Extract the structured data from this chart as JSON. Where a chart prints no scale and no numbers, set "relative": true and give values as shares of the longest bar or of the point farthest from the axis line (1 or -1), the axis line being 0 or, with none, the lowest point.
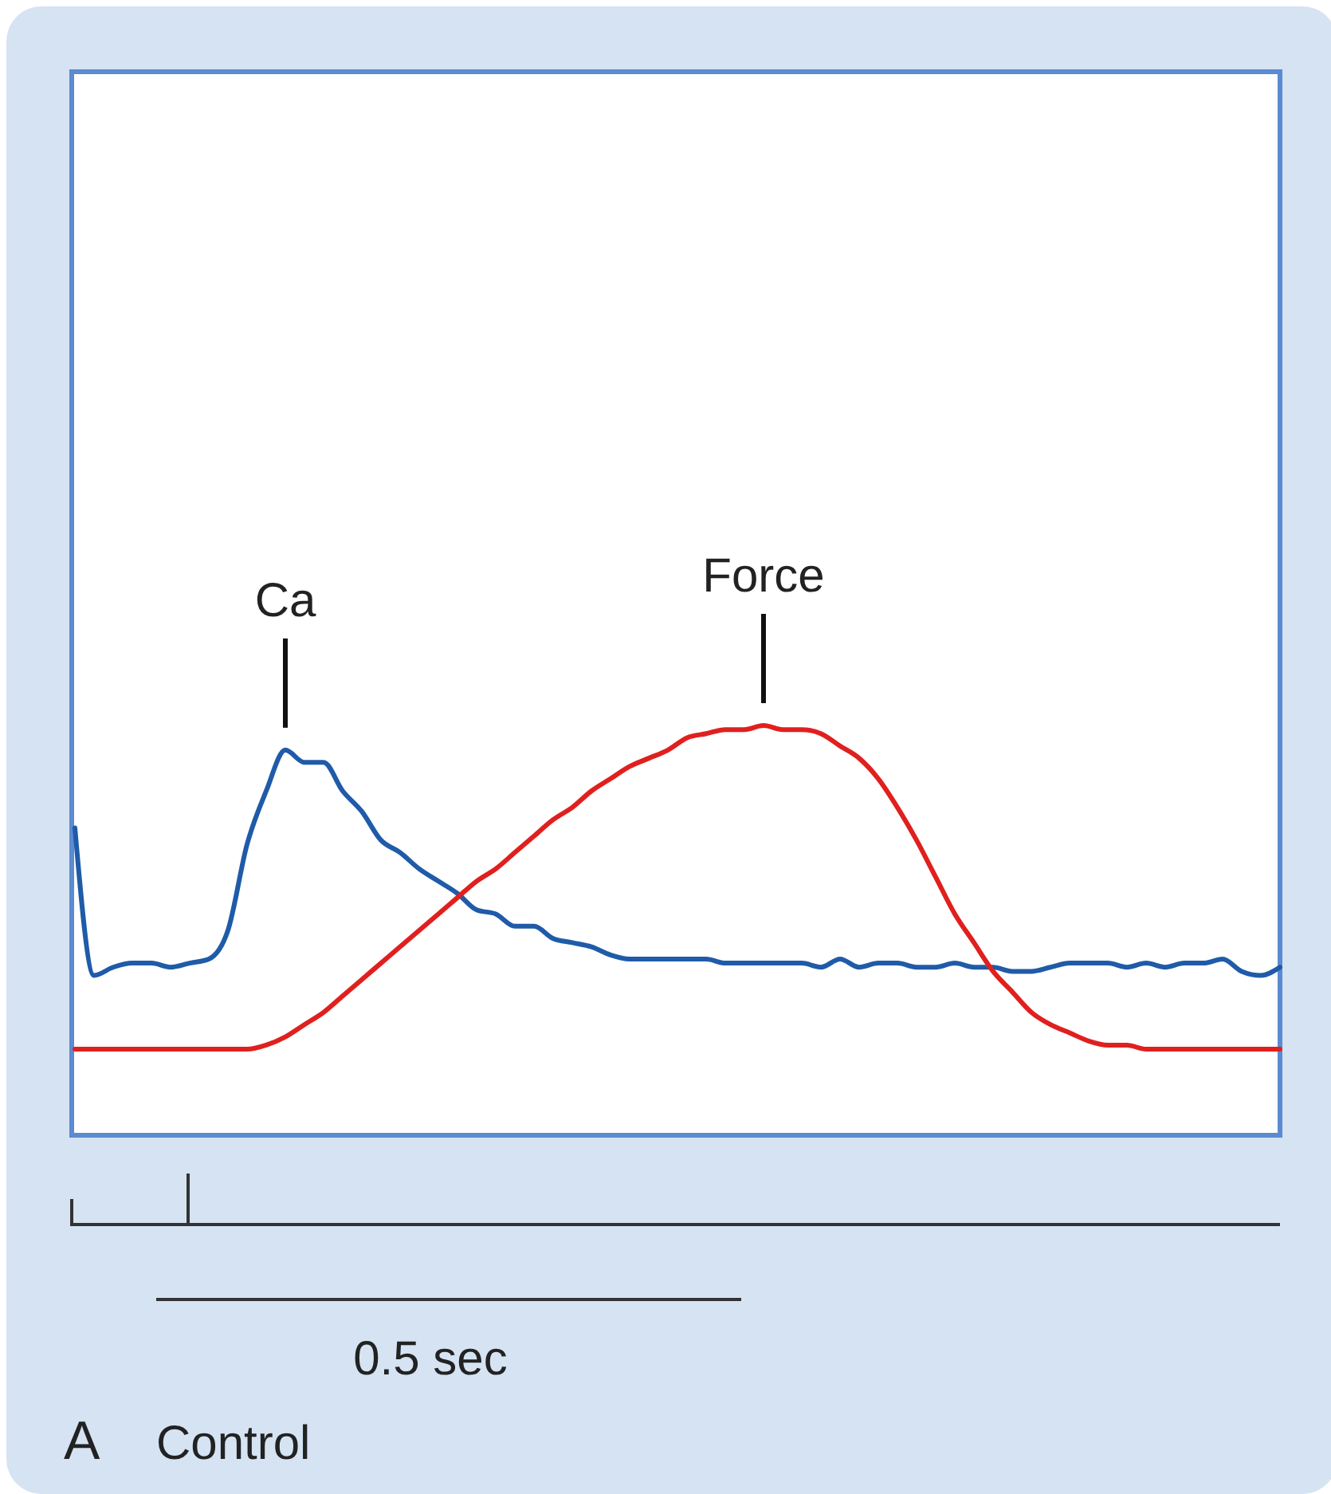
{
  "chart_data": {
    "type": "line",
    "relative": true,
    "tick_labels": false,
    "categories": [
      null,
      null,
      null,
      null,
      null,
      null,
      null,
      null,
      null,
      null,
      null,
      null,
      null,
      null,
      null,
      null,
      null,
      null,
      null,
      null,
      null,
      null,
      null,
      null,
      null,
      null,
      null,
      null,
      null,
      null,
      null,
      null,
      null,
      null,
      null,
      null,
      null,
      null,
      null,
      null,
      null,
      null,
      null,
      null,
      null,
      null,
      null,
      null,
      null,
      null,
      null,
      null,
      null,
      null,
      null,
      null,
      null,
      null,
      null,
      null,
      null,
      null,
      null,
      null
    ],
    "series": [
      {
        "name": "Ca",
        "color": "#1f5ba8",
        "values": [
          0.75,
          0.39,
          0.41,
          0.42,
          0.42,
          0.41,
          0.42,
          0.43,
          0.5,
          0.71,
          0.84,
          0.94,
          0.91,
          0.91,
          0.84,
          0.79,
          0.72,
          0.69,
          0.65,
          0.62,
          0.59,
          0.55,
          0.54,
          0.51,
          0.51,
          0.48,
          0.47,
          0.46,
          0.44,
          0.43,
          0.43,
          0.43,
          0.43,
          0.43,
          0.42,
          0.42,
          0.42,
          0.42,
          0.42,
          0.41,
          0.43,
          0.41,
          0.42,
          0.42,
          0.41,
          0.41,
          0.42,
          0.41,
          0.41,
          0.4,
          0.4,
          0.41,
          0.42,
          0.42,
          0.42,
          0.41,
          0.42,
          0.41,
          0.42,
          0.42,
          0.43,
          0.4,
          0.39,
          0.41
        ]
      },
      {
        "name": "Force",
        "color": "#e0201e",
        "values": [
          0.21,
          0.21,
          0.21,
          0.21,
          0.21,
          0.21,
          0.21,
          0.21,
          0.21,
          0.21,
          0.22,
          0.24,
          0.27,
          0.3,
          0.34,
          0.38,
          0.42,
          0.46,
          0.5,
          0.54,
          0.58,
          0.62,
          0.65,
          0.69,
          0.73,
          0.77,
          0.8,
          0.84,
          0.87,
          0.9,
          0.92,
          0.94,
          0.97,
          0.98,
          0.99,
          0.99,
          1,
          0.99,
          0.99,
          0.98,
          0.95,
          0.92,
          0.87,
          0.8,
          0.72,
          0.63,
          0.54,
          0.47,
          0.4,
          0.35,
          0.3,
          0.27,
          0.25,
          0.23,
          0.22,
          0.22,
          0.21,
          0.21,
          0.21,
          0.21,
          0.21,
          0.21,
          0.21,
          0.21
        ]
      }
    ],
    "annotations": [
      "0.5 sec",
      "A",
      "Control"
    ]
  }
}
